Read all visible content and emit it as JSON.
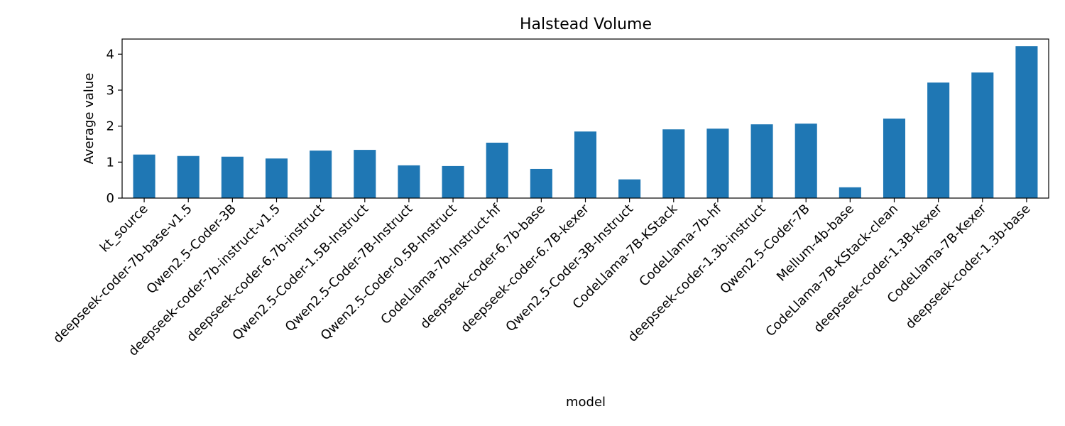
{
  "chart_data": {
    "type": "bar",
    "title": "Halstead Volume",
    "xlabel": "model",
    "ylabel": "Average value",
    "ylim": [
      0,
      4.42
    ],
    "yticks": [
      0,
      1,
      2,
      3,
      4
    ],
    "grid": false,
    "legend": "none",
    "bar_color": "#1f77b4",
    "categories": [
      "kt_source",
      "deepseek-coder-7b-base-v1.5",
      "Qwen2.5-Coder-3B",
      "deepseek-coder-7b-instruct-v1.5",
      "deepseek-coder-6.7b-instruct",
      "Qwen2.5-Coder-1.5B-Instruct",
      "Qwen2.5-Coder-7B-Instruct",
      "Qwen2.5-Coder-0.5B-Instruct",
      "CodeLlama-7b-Instruct-hf",
      "deepseek-coder-6.7b-base",
      "deepseek-coder-6.7B-kexer",
      "Qwen2.5-Coder-3B-Instruct",
      "CodeLlama-7B-KStack",
      "CodeLlama-7b-hf",
      "deepseek-coder-1.3b-instruct",
      "Qwen2.5-Coder-7B",
      "Mellum-4b-base",
      "CodeLlama-7B-KStack-clean",
      "deepseek-coder-1.3B-kexer",
      "CodeLlama-7B-Kexer",
      "deepseek-coder-1.3b-base"
    ],
    "values": [
      1.21,
      1.17,
      1.15,
      1.1,
      1.32,
      1.34,
      0.91,
      0.89,
      1.54,
      0.81,
      1.85,
      0.52,
      1.91,
      1.93,
      2.05,
      2.07,
      0.3,
      2.21,
      3.21,
      3.49,
      4.22
    ]
  }
}
